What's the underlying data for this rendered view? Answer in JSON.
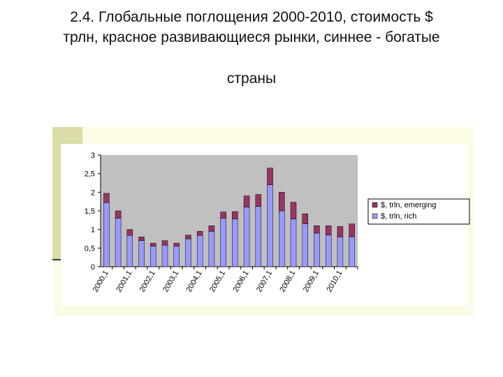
{
  "slide": {
    "title_line1": "2.4. Глобальные поглощения 2000-2010, стоимость $",
    "title_line2": "трлн, красное развивающиеся рынки, синнее  - богатые",
    "title_line3": "страны"
  },
  "colors": {
    "plot_bg": "#c0c0c0",
    "rich": "#9999ff",
    "emerging": "#993366",
    "frame": "#fbfbe6",
    "accent": "#dcdcaa"
  },
  "chart_data": {
    "type": "bar",
    "stacked": true,
    "categories": [
      "2000,1",
      "",
      "2001,1",
      "",
      "2002,1",
      "",
      "2003,1",
      "",
      "2004,1",
      "",
      "2005,1",
      "",
      "2006,1",
      "",
      "2007,1",
      "",
      "2008,1",
      "",
      "2009,1",
      "",
      "2010,1",
      ""
    ],
    "series": [
      {
        "name": "$, trln, rich",
        "color": "#9999ff",
        "values": [
          1.72,
          1.3,
          0.84,
          0.7,
          0.55,
          0.58,
          0.55,
          0.75,
          0.84,
          0.95,
          1.3,
          1.28,
          1.6,
          1.62,
          2.2,
          1.5,
          1.28,
          1.15,
          0.9,
          0.85,
          0.8,
          0.8
        ]
      },
      {
        "name": "$, trln, emerging",
        "color": "#993366",
        "values": [
          0.25,
          0.2,
          0.16,
          0.1,
          0.08,
          0.12,
          0.08,
          0.1,
          0.11,
          0.15,
          0.17,
          0.2,
          0.3,
          0.32,
          0.45,
          0.5,
          0.45,
          0.27,
          0.2,
          0.25,
          0.28,
          0.35
        ]
      }
    ],
    "y_ticks": [
      "0",
      "0,5",
      "1",
      "1,5",
      "2",
      "2,5",
      "3"
    ],
    "ylim": [
      0,
      3
    ],
    "grid": false,
    "legend": {
      "position": "right",
      "entries": [
        "$, trln, emerging",
        "$, trln, rich"
      ]
    }
  }
}
